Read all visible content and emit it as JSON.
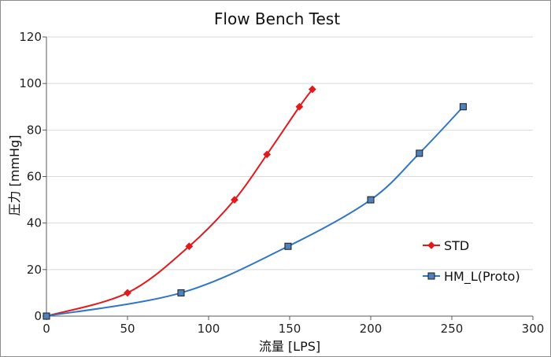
{
  "chart_data": {
    "type": "line",
    "title": "Flow Bench Test",
    "xlabel": "流量 [LPS]",
    "ylabel": "圧力 [mmHg]",
    "xlim": [
      0,
      300
    ],
    "ylim": [
      0,
      120
    ],
    "x_ticks": [
      0,
      50,
      100,
      150,
      200,
      250,
      300
    ],
    "y_ticks": [
      0,
      20,
      40,
      60,
      80,
      100,
      120
    ],
    "x_tick_labels": [
      "0",
      "50",
      "100",
      "150",
      "200",
      "250",
      "300"
    ],
    "y_tick_labels": [
      "0",
      "20",
      "40",
      "60",
      "80",
      "100",
      "120"
    ],
    "grid": "horizontal",
    "legend_position": "right",
    "series": [
      {
        "name": "STD",
        "color": "#e31a1c",
        "marker": "diamond",
        "points": [
          [
            0,
            0
          ],
          [
            50,
            10
          ],
          [
            88,
            30
          ],
          [
            116,
            50
          ],
          [
            136,
            69.5
          ],
          [
            156,
            90
          ],
          [
            164,
            97.5
          ]
        ]
      },
      {
        "name": "HM_L(Proto)",
        "color": "#2f75c9",
        "marker": "square",
        "points": [
          [
            0,
            0
          ],
          [
            83,
            10
          ],
          [
            149,
            30
          ],
          [
            200,
            50
          ],
          [
            230,
            70
          ],
          [
            257,
            90
          ]
        ]
      }
    ]
  }
}
